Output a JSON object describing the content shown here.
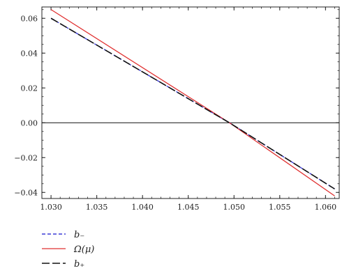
{
  "chart_data": {
    "type": "line",
    "title": "",
    "xlabel": "",
    "ylabel": "",
    "xlim": [
      1.029,
      1.0615
    ],
    "ylim": [
      -0.0435,
      0.0665
    ],
    "x_ticks": [
      1.03,
      1.035,
      1.04,
      1.045,
      1.05,
      1.055,
      1.06
    ],
    "x_tick_labels": [
      "1.030",
      "1.035",
      "1.040",
      "1.045",
      "1.050",
      "1.055",
      "1.060"
    ],
    "y_ticks": [
      0.06,
      0.04,
      0.02,
      0.0,
      -0.02,
      -0.04
    ],
    "y_tick_labels": [
      "0.06",
      "0.04",
      "0.02",
      "0.00",
      "−0.02",
      "−0.04"
    ],
    "zero_line": true,
    "grid": false,
    "legend_position": "bottom-left, below plot",
    "series": [
      {
        "name": "b₋",
        "color": "#3b3bd6",
        "dash": "dashed-short",
        "x": [
          1.03,
          1.0495,
          1.061
        ],
        "y": [
          0.06,
          0.0,
          -0.038
        ]
      },
      {
        "name": "Ω(μ)",
        "color": "#e03030",
        "dash": "solid",
        "x": [
          1.03,
          1.0495,
          1.061
        ],
        "y": [
          0.065,
          0.0,
          -0.042
        ]
      },
      {
        "name": "b₊",
        "color": "#111111",
        "dash": "dashed-long",
        "x": [
          1.03,
          1.0495,
          1.061
        ],
        "y": [
          0.06,
          0.0,
          -0.038
        ]
      }
    ]
  }
}
